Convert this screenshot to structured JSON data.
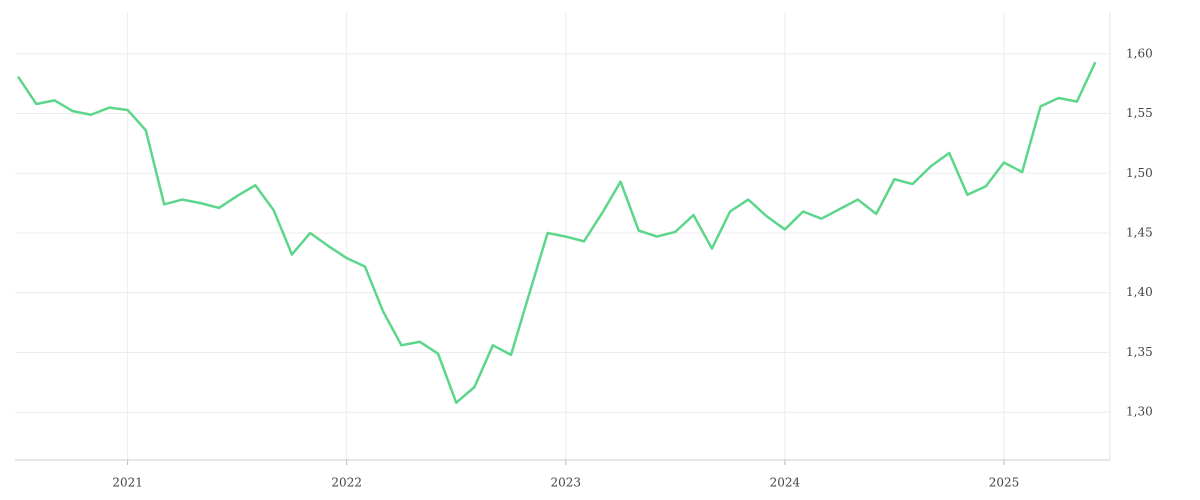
{
  "chart_data": {
    "type": "line",
    "x": [
      2020.5,
      2020.583,
      2020.667,
      2020.75,
      2020.833,
      2020.917,
      2021,
      2021.083,
      2021.167,
      2021.25,
      2021.333,
      2021.417,
      2021.5,
      2021.583,
      2021.667,
      2021.75,
      2021.833,
      2021.917,
      2022,
      2022.083,
      2022.167,
      2022.25,
      2022.333,
      2022.417,
      2022.5,
      2022.583,
      2022.667,
      2022.75,
      2022.833,
      2022.917,
      2023,
      2023.083,
      2023.167,
      2023.25,
      2023.333,
      2023.417,
      2023.5,
      2023.583,
      2023.667,
      2023.75,
      2023.833,
      2023.917,
      2024,
      2024.083,
      2024.167,
      2024.25,
      2024.333,
      2024.417,
      2024.5,
      2024.583,
      2024.667,
      2024.75,
      2024.833,
      2024.917,
      2025,
      2025.083,
      2025.167,
      2025.25,
      2025.333,
      2025.417
    ],
    "series": [
      {
        "color": "#5cd68a",
        "values": [
          1.581,
          1.558,
          1.561,
          1.552,
          1.549,
          1.555,
          1.553,
          1.536,
          1.474,
          1.478,
          1.475,
          1.471,
          1.481,
          1.49,
          1.469,
          1.432,
          1.45,
          1.439,
          1.429,
          1.422,
          1.384,
          1.356,
          1.359,
          1.349,
          1.308,
          1.321,
          1.356,
          1.348,
          1.399,
          1.45,
          1.447,
          1.443,
          1.467,
          1.493,
          1.452,
          1.447,
          1.451,
          1.465,
          1.437,
          1.468,
          1.478,
          1.464,
          1.453,
          1.468,
          1.462,
          1.47,
          1.478,
          1.466,
          1.495,
          1.491,
          1.506,
          1.517,
          1.482,
          1.489,
          1.509,
          1.501,
          1.556,
          1.563,
          1.56,
          1.593
        ]
      }
    ],
    "xlim": [
      2020.486,
      2025.484
    ],
    "xticks": [
      2021,
      2022,
      2023,
      2024,
      2025
    ],
    "ylim": [
      1.26,
      1.635
    ],
    "yticks": [
      {
        "value": 1.3,
        "label": "1,30"
      },
      {
        "value": 1.35,
        "label": "1,35"
      },
      {
        "value": 1.4,
        "label": "1,40"
      },
      {
        "value": 1.45,
        "label": "1,45"
      },
      {
        "value": 1.5,
        "label": "1,50"
      },
      {
        "value": 1.55,
        "label": "1,55"
      },
      {
        "value": 1.6,
        "label": "1,60"
      }
    ],
    "grid": true
  }
}
